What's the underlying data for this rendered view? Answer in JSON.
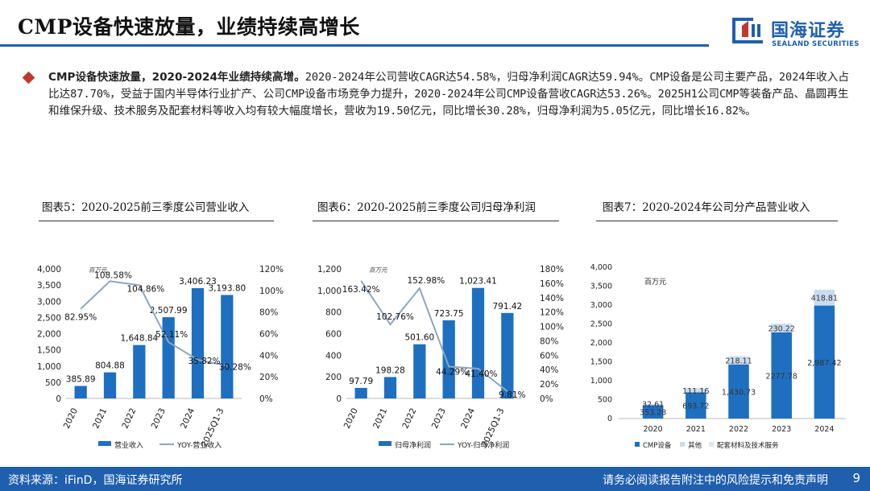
{
  "header": {
    "title": "CMP设备快速放量，业绩持续高增长",
    "logo_cn": "国海证券",
    "logo_en": "SEALAND SECURITIES"
  },
  "summary": {
    "bold": "CMP设备快速放量，2020-2024年业绩持续高增。",
    "text": "2020-2024年公司营收CAGR达54.58%，归母净利润CAGR达59.94%。CMP设备是公司主要产品，2024年收入占比达87.70%，受益于国内半导体行业扩产、公司CMP设备市场竞争力提升，2020-2024年公司CMP设备营收CAGR达53.26%。2025H1公司CMP等装备产品、晶圆再生和维保升级、技术服务及配套材料等收入均有较大幅度增长，营收为19.50亿元，同比增长30.28%，归母净利润为5.05亿元，同比增长16.82%。"
  },
  "chart_data": [
    {
      "type": "bar",
      "title": "图表5：2020-2025前三季度公司营业收入",
      "unit": "百万元",
      "categories": [
        "2020",
        "2021",
        "2022",
        "2023",
        "2024",
        "2025Q1-3"
      ],
      "series": [
        {
          "name": "营业收入",
          "axis": "left",
          "values": [
            385.89,
            804.88,
            1648.84,
            2507.99,
            3406.23,
            3193.8
          ],
          "labels": [
            "385.89",
            "804.88",
            "1,648.84",
            "2,507.99",
            "3,406.23",
            "3,193.80"
          ]
        },
        {
          "name": "YOY-营业收入",
          "type": "line",
          "axis": "right",
          "values": [
            82.95,
            108.58,
            104.86,
            52.11,
            35.82,
            30.28
          ],
          "labels": [
            "82.95%",
            "108.58%",
            "104.86%",
            "52.11%",
            "35.82%",
            "30.28%"
          ]
        }
      ],
      "ylim": [
        0,
        4000
      ],
      "yticks": [
        "4,000",
        "3,500",
        "3,000",
        "2,500",
        "2,000",
        "1,500",
        "1,000",
        "500",
        "0"
      ],
      "y2lim": [
        0,
        120
      ],
      "y2ticks": [
        "120%",
        "100%",
        "80%",
        "60%",
        "40%",
        "20%",
        "0%"
      ],
      "legend": [
        "营业收入",
        "YOY-营业收入"
      ]
    },
    {
      "type": "bar",
      "title": "图表6：2020-2025前三季度公司归母净利润",
      "unit": "百万元",
      "categories": [
        "2020",
        "2021",
        "2022",
        "2023",
        "2024",
        "2025Q1-3"
      ],
      "series": [
        {
          "name": "归母净利润",
          "axis": "left",
          "values": [
            97.79,
            198.28,
            501.6,
            723.75,
            1023.41,
            791.42
          ],
          "labels": [
            "97.79",
            "198.28",
            "501.60",
            "723.75",
            "1,023.41",
            "791.42"
          ]
        },
        {
          "name": "YOY-归母净利润",
          "type": "line",
          "axis": "right",
          "values": [
            163.42,
            102.76,
            152.98,
            44.29,
            41.4,
            9.81
          ],
          "labels": [
            "163.42%",
            "102.76%",
            "152.98%",
            "44.29%",
            "41.40%",
            "9.81%"
          ]
        }
      ],
      "ylim": [
        0,
        1200
      ],
      "yticks": [
        "1,200",
        "1,000",
        "800",
        "600",
        "400",
        "200",
        "0"
      ],
      "y2lim": [
        0,
        180
      ],
      "y2ticks": [
        "180%",
        "160%",
        "140%",
        "120%",
        "100%",
        "80%",
        "60%",
        "40%",
        "20%",
        "0%"
      ],
      "legend": [
        "归母净利润",
        "YOY-归母净利润"
      ]
    },
    {
      "type": "bar",
      "stacked": true,
      "title": "图表7：2020-2024年公司分产品营业收入",
      "unit": "百万元",
      "categories": [
        "2020",
        "2021",
        "2022",
        "2023",
        "2024"
      ],
      "series": [
        {
          "name": "CMP设备",
          "values": [
            353.28,
            693.72,
            1430.73,
            2277.78,
            2987.42
          ],
          "labels": [
            "353.28",
            "693.72",
            "1,430.73",
            "2277.78",
            "2,987.42"
          ]
        },
        {
          "name": "其他",
          "values": [
            0,
            0,
            0,
            0,
            0
          ],
          "labels": [
            "",
            "",
            "",
            "",
            ""
          ]
        },
        {
          "name": "配套材料及技术服务",
          "values": [
            32.61,
            111.16,
            218.11,
            230.22,
            418.81
          ],
          "labels": [
            "32.61",
            "111.16",
            "218.11",
            "230.22",
            "418.81"
          ]
        }
      ],
      "ylim": [
        0,
        4000
      ],
      "yticks": [
        "4,000",
        "3,500",
        "3,000",
        "2,500",
        "2,000",
        "1,500",
        "1,000",
        "500",
        "0"
      ],
      "legend": [
        "CMP设备",
        "其他",
        "配套材料及技术服务"
      ]
    }
  ],
  "colors": {
    "brand": "#1f5fae",
    "bar": "#1f6fc0",
    "bar_light": "#c9dcf0",
    "line": "#8fa6bf",
    "bullet": "#c0392b"
  },
  "footer": {
    "source": "资料来源：iFinD，国海证券研究所",
    "disclaimer": "请务必阅读报告附注中的风险提示和免责声明",
    "page": "9"
  }
}
